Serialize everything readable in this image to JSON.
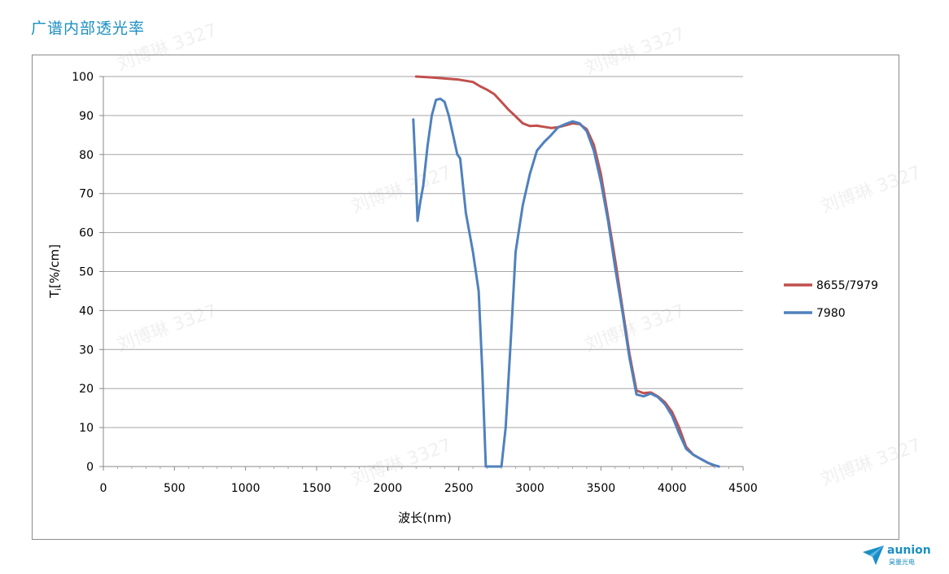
{
  "page": {
    "title": "广谱内部透光率"
  },
  "watermark": "刘博琳 3327",
  "logo": {
    "name": "aunion",
    "sub": "昊量光电"
  },
  "colors": {
    "title": "#1b8fc4",
    "series_red": "#c0504d",
    "series_blue": "#4f81bd",
    "grid": "#a6a6a6"
  },
  "chart_data": {
    "type": "line",
    "title": "",
    "xlabel": "波长(nm)",
    "ylabel": "Ti[%/cm]",
    "xlim": [
      0,
      4500
    ],
    "ylim": [
      0,
      100
    ],
    "xticks": [
      0,
      500,
      1000,
      1500,
      2000,
      2500,
      3000,
      3500,
      4000,
      4500
    ],
    "yticks": [
      0,
      10,
      20,
      30,
      40,
      50,
      60,
      70,
      80,
      90,
      100
    ],
    "grid": true,
    "legend_position": "right",
    "series": [
      {
        "name": "8655/7979",
        "color": "#c0504d",
        "points": [
          [
            2200,
            100
          ],
          [
            2300,
            99.8
          ],
          [
            2400,
            99.5
          ],
          [
            2500,
            99.2
          ],
          [
            2600,
            98.6
          ],
          [
            2650,
            97.5
          ],
          [
            2700,
            96.6
          ],
          [
            2750,
            95.5
          ],
          [
            2800,
            93.5
          ],
          [
            2850,
            91.5
          ],
          [
            2900,
            89.8
          ],
          [
            2950,
            88
          ],
          [
            3000,
            87.3
          ],
          [
            3050,
            87.4
          ],
          [
            3100,
            87.1
          ],
          [
            3150,
            86.8
          ],
          [
            3200,
            87
          ],
          [
            3250,
            87.5
          ],
          [
            3300,
            88
          ],
          [
            3350,
            87.8
          ],
          [
            3400,
            86.5
          ],
          [
            3450,
            82.5
          ],
          [
            3500,
            75
          ],
          [
            3550,
            64
          ],
          [
            3600,
            53
          ],
          [
            3650,
            41
          ],
          [
            3700,
            29
          ],
          [
            3750,
            19.5
          ],
          [
            3800,
            18.8
          ],
          [
            3850,
            19
          ],
          [
            3900,
            18
          ],
          [
            3950,
            16.5
          ],
          [
            4000,
            14
          ],
          [
            4050,
            10
          ],
          [
            4100,
            5
          ],
          [
            4150,
            3
          ],
          [
            4200,
            2
          ],
          [
            4250,
            1
          ],
          [
            4300,
            0.2
          ]
        ]
      },
      {
        "name": "7980",
        "color": "#4f81bd",
        "points": [
          [
            2180,
            89
          ],
          [
            2200,
            73
          ],
          [
            2210,
            63
          ],
          [
            2230,
            68
          ],
          [
            2250,
            72
          ],
          [
            2280,
            82
          ],
          [
            2310,
            90
          ],
          [
            2340,
            94
          ],
          [
            2370,
            94.3
          ],
          [
            2400,
            93.5
          ],
          [
            2430,
            90
          ],
          [
            2460,
            85
          ],
          [
            2490,
            80
          ],
          [
            2510,
            79
          ],
          [
            2550,
            65
          ],
          [
            2600,
            55
          ],
          [
            2640,
            45
          ],
          [
            2665,
            25
          ],
          [
            2690,
            0
          ],
          [
            2800,
            0
          ],
          [
            2830,
            10
          ],
          [
            2870,
            35
          ],
          [
            2900,
            55
          ],
          [
            2950,
            67
          ],
          [
            3000,
            75
          ],
          [
            3050,
            81
          ],
          [
            3100,
            83.2
          ],
          [
            3150,
            85
          ],
          [
            3200,
            87
          ],
          [
            3250,
            87.8
          ],
          [
            3300,
            88.5
          ],
          [
            3350,
            88
          ],
          [
            3400,
            86
          ],
          [
            3450,
            81
          ],
          [
            3500,
            73
          ],
          [
            3550,
            63
          ],
          [
            3600,
            51
          ],
          [
            3650,
            40
          ],
          [
            3700,
            28
          ],
          [
            3750,
            18.5
          ],
          [
            3800,
            18
          ],
          [
            3850,
            18.7
          ],
          [
            3900,
            17.8
          ],
          [
            3950,
            16
          ],
          [
            4000,
            13
          ],
          [
            4050,
            8.5
          ],
          [
            4100,
            4.5
          ],
          [
            4150,
            3
          ],
          [
            4200,
            2
          ],
          [
            4250,
            1
          ],
          [
            4300,
            0.3
          ],
          [
            4330,
            0
          ]
        ]
      }
    ]
  }
}
